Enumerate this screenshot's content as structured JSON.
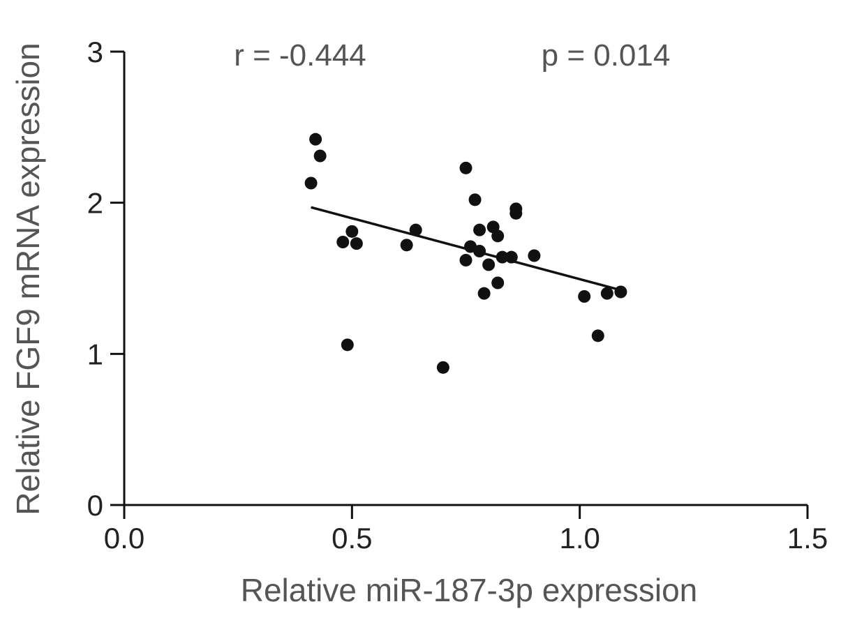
{
  "chart_data": {
    "type": "scatter",
    "title": "",
    "xlabel": "Relative miR-187-3p expression",
    "ylabel": "Relative FGF9 mRNA expression",
    "xlim": [
      0,
      1.5
    ],
    "ylim": [
      0,
      3
    ],
    "x_ticks": [
      "0.0",
      "0.5",
      "1.0",
      "1.5"
    ],
    "y_ticks": [
      "0",
      "1",
      "2",
      "3"
    ],
    "grid": false,
    "annotations": {
      "r": "r = -0.444",
      "p": "p = 0.014"
    },
    "series": [
      {
        "color": "#111111",
        "points": [
          [
            0.41,
            2.13
          ],
          [
            0.42,
            2.42
          ],
          [
            0.43,
            2.31
          ],
          [
            0.48,
            1.74
          ],
          [
            0.49,
            1.06
          ],
          [
            0.5,
            1.81
          ],
          [
            0.51,
            1.73
          ],
          [
            0.62,
            1.72
          ],
          [
            0.64,
            1.82
          ],
          [
            0.7,
            0.91
          ],
          [
            0.75,
            2.23
          ],
          [
            0.75,
            1.62
          ],
          [
            0.76,
            1.71
          ],
          [
            0.77,
            2.02
          ],
          [
            0.78,
            1.68
          ],
          [
            0.78,
            1.82
          ],
          [
            0.79,
            1.4
          ],
          [
            0.8,
            1.59
          ],
          [
            0.81,
            1.84
          ],
          [
            0.82,
            1.78
          ],
          [
            0.82,
            1.47
          ],
          [
            0.83,
            1.64
          ],
          [
            0.85,
            1.64
          ],
          [
            0.86,
            1.96
          ],
          [
            0.86,
            1.93
          ],
          [
            0.9,
            1.65
          ],
          [
            1.01,
            1.38
          ],
          [
            1.04,
            1.12
          ],
          [
            1.06,
            1.4
          ],
          [
            1.09,
            1.41
          ]
        ]
      }
    ],
    "fit_line": {
      "x": [
        0.41,
        1.08
      ],
      "y": [
        1.97,
        1.43
      ],
      "color": "#111111"
    }
  }
}
